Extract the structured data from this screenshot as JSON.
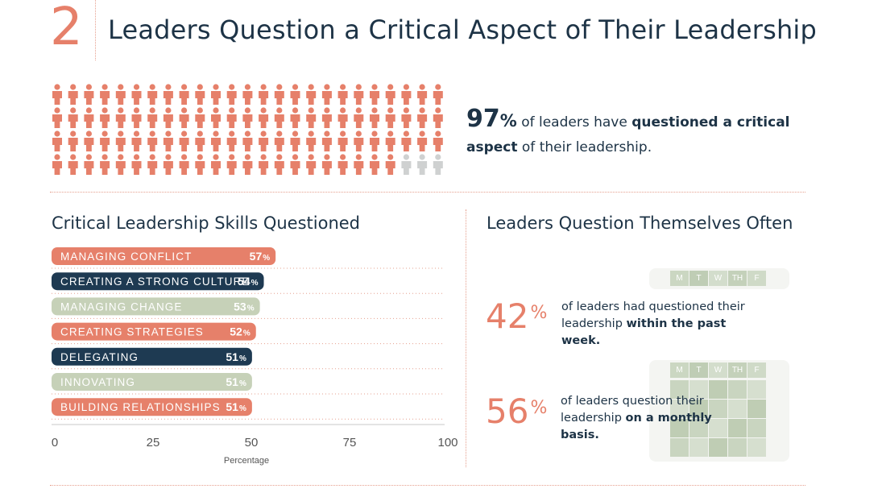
{
  "header": {
    "section_number": "2",
    "title": "Leaders Question a Critical Aspect of Their Leadership"
  },
  "icon_grid": {
    "icon": "person-icon",
    "total": 100,
    "highlighted": 97,
    "highlight_color": "#e6806a",
    "muted_color": "#cfd1d1"
  },
  "stat_97": {
    "value": "97",
    "unit": "%",
    "text_pre": " of leaders have ",
    "text_bold": "questioned a critical aspect",
    "text_post": " of their leadership."
  },
  "chart_data": {
    "type": "bar",
    "orientation": "horizontal",
    "title": "Critical Leadership Skills Questioned",
    "xlabel": "Percentage",
    "xlim": [
      0,
      100
    ],
    "xticks": [
      "0",
      "25",
      "50",
      "75",
      "100"
    ],
    "categories": [
      "MANAGING CONFLICT",
      "CREATING A STRONG CULTURE",
      "MANAGING CHANGE",
      "CREATING STRATEGIES",
      "DELEGATING",
      "INNOVATING",
      "BUILDING RELATIONSHIPS"
    ],
    "values": [
      57,
      54,
      53,
      52,
      51,
      51,
      51
    ],
    "value_labels": [
      "57",
      "54",
      "53",
      "52",
      "51",
      "51",
      "51"
    ],
    "unit": "%",
    "bar_colors": [
      "#e6806a",
      "#1e3a52",
      "#c6d1b8",
      "#e6806a",
      "#1e3a52",
      "#c6d1b8",
      "#e6806a"
    ]
  },
  "right": {
    "title": "Leaders Question Themselves Often",
    "weekdays": [
      "M",
      "T",
      "W",
      "TH",
      "F"
    ],
    "stat_42": {
      "value": "42",
      "unit": "%",
      "text_pre": "of leaders had questioned their leadership ",
      "text_bold": "within the past week."
    },
    "stat_56": {
      "value": "56",
      "unit": "%",
      "text_pre": "of leaders question their leadership ",
      "text_bold": "on a monthly basis."
    }
  }
}
